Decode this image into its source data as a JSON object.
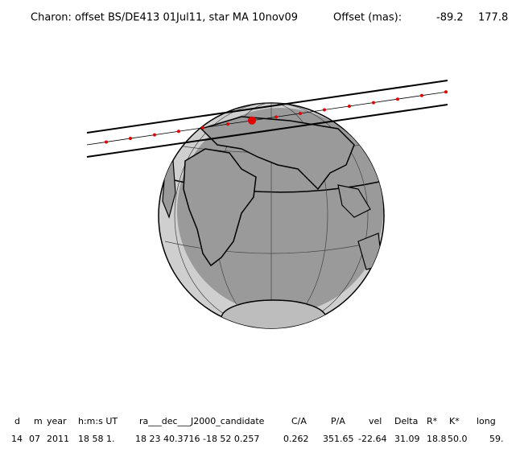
{
  "header": {
    "title": "Charon: offset BS/DE413 01Jul11, star MA 10nov09",
    "offset_label": "Offset (mas):",
    "offset_x": "-89.2",
    "offset_y": "177.8"
  },
  "table": {
    "columns": [
      "d",
      "m",
      "year",
      "h:m:s UT",
      "ra___dec___J2000_candidate",
      "C/A",
      "P/A",
      "vel",
      "Delta",
      "R*",
      "K*",
      "long"
    ],
    "row": [
      "14",
      "07",
      "2011",
      "18 58  1.",
      "18 23 40.3716 -18 52  0.257",
      "0.262",
      "351.65",
      "-22.64",
      "31.09",
      "18.8",
      "50.0",
      "59."
    ]
  }
}
